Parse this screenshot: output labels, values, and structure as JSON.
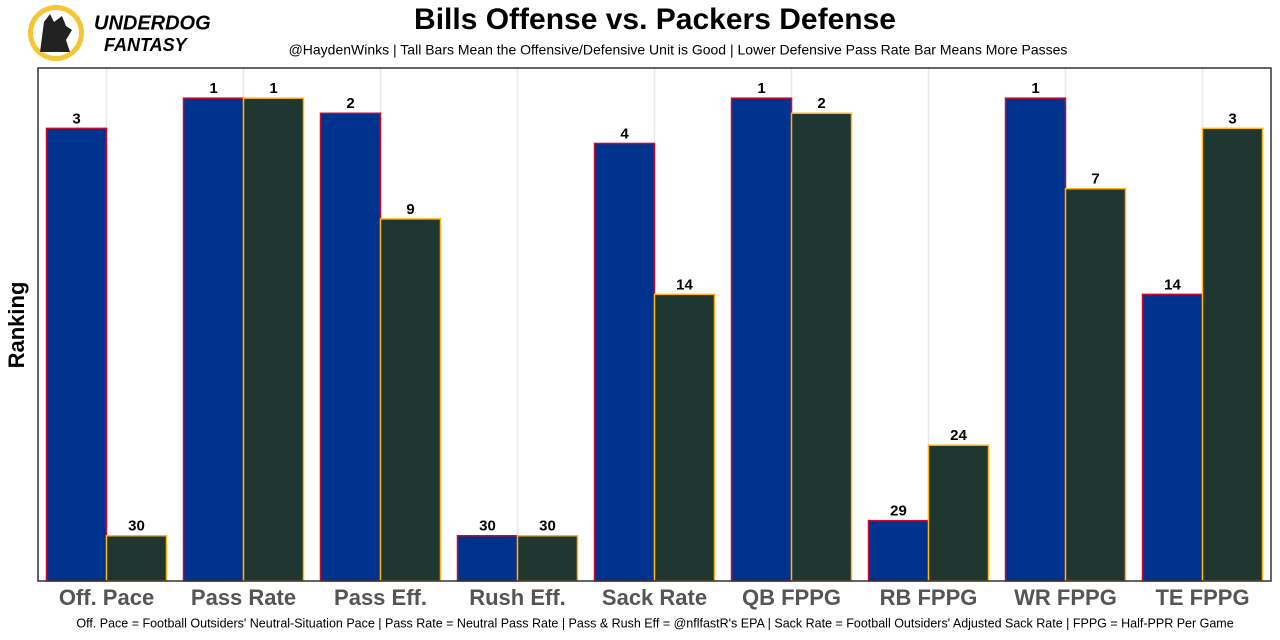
{
  "logo": {
    "line1": "UNDERDOG",
    "line2": "FANTASY"
  },
  "chart_data": {
    "type": "bar",
    "title": "Bills Offense vs. Packers Defense",
    "subtitle": "@HaydenWinks | Tall Bars Mean the Offensive/Defensive Unit is Good | Lower Defensive Pass Rate Bar Means More Passes",
    "y_label": "Ranking",
    "caption": "Off. Pace = Football Outsiders' Neutral-Situation Pace | Pass Rate = Neutral Pass Rate | Pass & Rush Eff = @nflfastR's EPA | Sack Rate = Football Outsiders' Adjusted Sack Rate | FPPG = Half-PPR Per Game",
    "categories": [
      "Off. Pace",
      "Pass Rate",
      "Pass Eff.",
      "Rush Eff.",
      "Sack Rate",
      "QB FPPG",
      "RB FPPG",
      "WR FPPG",
      "TE FPPG"
    ],
    "series": [
      {
        "color": "#00338D",
        "border": "#C60C30",
        "values": [
          3,
          1,
          2,
          30,
          4,
          1,
          29,
          1,
          14
        ]
      },
      {
        "color": "#203731",
        "border": "#FFB612",
        "values": [
          30,
          1,
          9,
          30,
          14,
          2,
          24,
          7,
          3
        ]
      }
    ],
    "ylim": [
      33,
      -1
    ],
    "grid": true
  }
}
